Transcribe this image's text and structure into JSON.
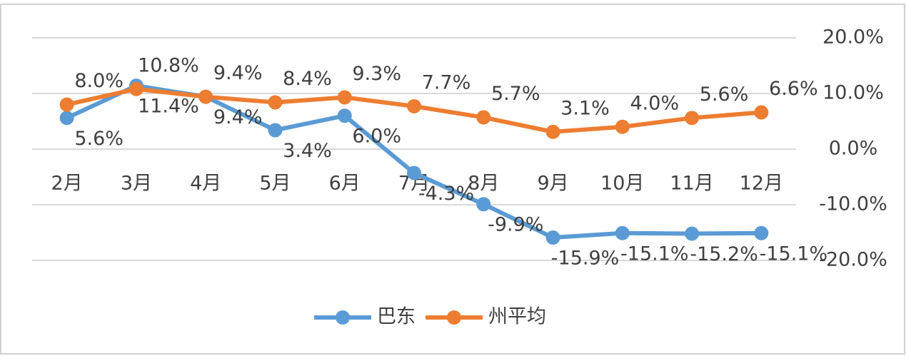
{
  "chart_data": {
    "type": "line",
    "categories": [
      "2月",
      "3月",
      "4月",
      "5月",
      "6月",
      "7月",
      "8月",
      "9月",
      "10月",
      "11月",
      "12月"
    ],
    "series": [
      {
        "name": "巴东",
        "color": "#5b9bd5",
        "values": [
          5.6,
          11.4,
          9.4,
          3.4,
          6.0,
          -4.3,
          -9.9,
          -15.9,
          -15.1,
          -15.2,
          -15.1
        ],
        "value_labels": [
          "5.6%",
          "11.4%",
          "9.4%",
          "3.4%",
          "6.0%",
          "-4.3%",
          "-9.9%",
          "-15.9%",
          "-15.1%",
          "-15.2%",
          "-15.1%"
        ]
      },
      {
        "name": "州平均",
        "color": "#ed7d31",
        "values": [
          8.0,
          10.8,
          9.4,
          8.4,
          9.3,
          7.7,
          5.7,
          3.1,
          4.0,
          5.6,
          6.6
        ],
        "value_labels": [
          "8.0%",
          "10.8%",
          "9.4%",
          "8.4%",
          "9.3%",
          "7.7%",
          "5.7%",
          "3.1%",
          "4.0%",
          "5.6%",
          "6.6%"
        ]
      }
    ],
    "ylim": [
      -20,
      20
    ],
    "yticks": [
      {
        "value": -20,
        "label": "-20.0%"
      },
      {
        "value": -10,
        "label": "-10.0%"
      },
      {
        "value": 0,
        "label": "0.0%"
      },
      {
        "value": 10,
        "label": "10.0%"
      },
      {
        "value": 20,
        "label": "20.0%"
      }
    ],
    "grid": true,
    "legend": "bottom"
  }
}
